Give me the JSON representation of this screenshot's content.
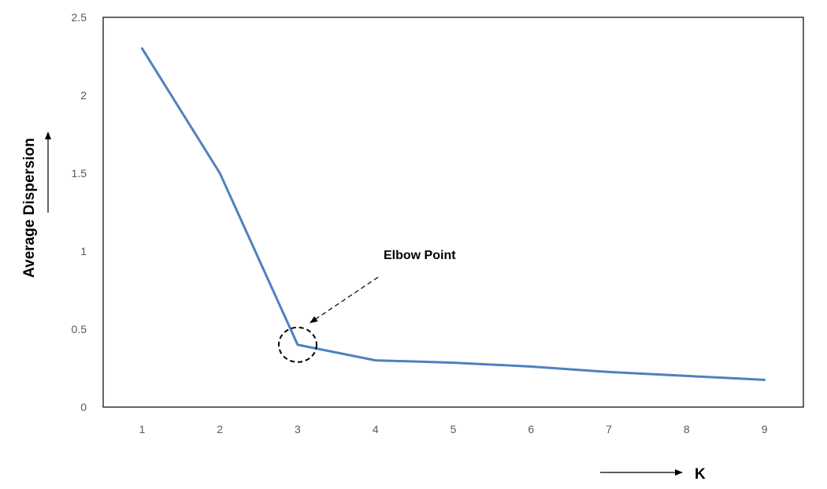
{
  "chart_data": {
    "type": "line",
    "title": "",
    "xlabel": "K",
    "ylabel": "Average Dispersion",
    "x": [
      1,
      2,
      3,
      4,
      5,
      6,
      7,
      8,
      9
    ],
    "series": [
      {
        "values": [
          2.3,
          1.5,
          0.4,
          0.3,
          0.285,
          0.26,
          0.225,
          0.2,
          0.175
        ]
      }
    ],
    "xlim": [
      0.5,
      9.5
    ],
    "ylim": [
      0,
      2.5
    ],
    "yticks": [
      0,
      0.5,
      1,
      1.5,
      2,
      2.5
    ],
    "yticklabels": [
      "0",
      "0.5",
      "1",
      "1.5",
      "2",
      "2.5"
    ],
    "xticklabels": [
      "1",
      "2",
      "3",
      "4",
      "5",
      "6",
      "7",
      "8",
      "9"
    ],
    "grid": false,
    "legend": "none",
    "annotation": {
      "text": "Elbow Point",
      "x": 3,
      "y": 0.4
    },
    "colors": {
      "line": "#4F81BD",
      "axis_box": "#000000",
      "tick_text": "#595959"
    }
  }
}
